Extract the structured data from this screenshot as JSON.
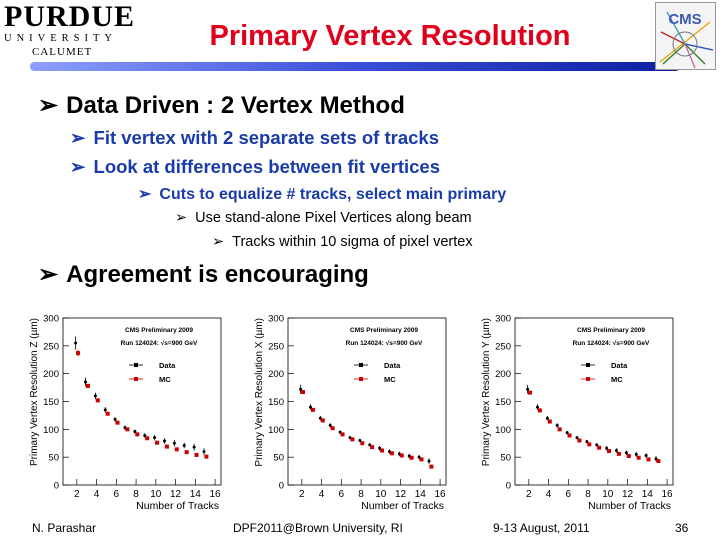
{
  "header": {
    "title": "Primary Vertex Resolution",
    "logo_left": {
      "word": "PURDUE",
      "university": "UNIVERSITY",
      "subtitle": "CALUMET"
    },
    "logo_right": {
      "text": "CMS"
    }
  },
  "bullets": {
    "method": "Data Driven : 2  Vertex Method",
    "fit": "Fit vertex with 2 separate sets of tracks",
    "look": "Look at differences between fit vertices",
    "cuts": "Cuts to equalize # tracks, select main primary",
    "standalone": "Use stand-alone Pixel Vertices along beam",
    "sigma": "Tracks within 10 sigma of pixel vertex",
    "agreement": "Agreement is encouraging"
  },
  "colors": {
    "title": "#e0001b",
    "blue_text": "#1a3baa",
    "data_marker": "#000000",
    "mc_marker": "#cc0000"
  },
  "chart_data": [
    {
      "type": "scatter",
      "ylabel": "Primary Vertex Resolution Z (µm)",
      "xlabel": "Number of Tracks",
      "xticks": [
        2,
        4,
        6,
        8,
        10,
        12,
        14,
        16
      ],
      "yticks": [
        0,
        50,
        100,
        150,
        200,
        250,
        300
      ],
      "xlim": [
        0.6,
        16.6
      ],
      "ylim": [
        0,
        300
      ],
      "annotation": [
        "CMS Preliminary 2009",
        "Run 124024: √s=900 GeV"
      ],
      "legend": [
        "Data",
        "MC"
      ],
      "series": [
        {
          "name": "Data",
          "x": [
            2,
            3,
            4,
            5,
            6,
            7,
            8,
            9,
            10,
            11,
            12,
            13,
            14,
            15
          ],
          "y": [
            255,
            185,
            160,
            135,
            118,
            103,
            96,
            89,
            85,
            79,
            75,
            71,
            68,
            60
          ],
          "err": [
            12,
            8,
            6,
            5,
            4,
            4,
            4,
            4,
            5,
            5,
            6,
            5,
            6,
            6
          ]
        },
        {
          "name": "MC",
          "x": [
            2,
            3,
            4,
            5,
            6,
            7,
            8,
            9,
            10,
            11,
            12,
            13,
            14,
            15
          ],
          "y": [
            237,
            178,
            152,
            128,
            112,
            100,
            91,
            84,
            76,
            69,
            64,
            59,
            54,
            51
          ],
          "err": [
            6,
            4,
            3,
            3,
            2,
            2,
            2,
            2,
            2,
            2,
            2,
            2,
            2,
            2
          ]
        }
      ]
    },
    {
      "type": "scatter",
      "ylabel": "Primary Vertex Resolution X (µm)",
      "xlabel": "Number of Tracks",
      "xticks": [
        2,
        4,
        6,
        8,
        10,
        12,
        14,
        16
      ],
      "yticks": [
        0,
        50,
        100,
        150,
        200,
        250,
        300
      ],
      "xlim": [
        0.6,
        16.6
      ],
      "ylim": [
        0,
        300
      ],
      "annotation": [
        "CMS Preliminary 2009",
        "Run 124024: √s=900 GeV"
      ],
      "legend": [
        "Data",
        "MC"
      ],
      "series": [
        {
          "name": "Data",
          "x": [
            2,
            3,
            4,
            5,
            6,
            7,
            8,
            9,
            10,
            11,
            12,
            13,
            14,
            15
          ],
          "y": [
            172,
            140,
            120,
            107,
            95,
            85,
            80,
            72,
            66,
            60,
            56,
            52,
            50,
            43
          ],
          "err": [
            8,
            5,
            4,
            4,
            3,
            3,
            3,
            3,
            4,
            4,
            4,
            4,
            4,
            5
          ]
        },
        {
          "name": "MC",
          "x": [
            2,
            3,
            4,
            5,
            6,
            7,
            8,
            9,
            10,
            11,
            12,
            13,
            14,
            15
          ],
          "y": [
            167,
            135,
            116,
            102,
            91,
            82,
            75,
            68,
            62,
            57,
            53,
            49,
            46,
            33
          ],
          "err": [
            3,
            3,
            2,
            2,
            2,
            2,
            2,
            2,
            2,
            2,
            2,
            2,
            2,
            2
          ]
        }
      ]
    },
    {
      "type": "scatter",
      "ylabel": "Primary Vertex Resolution Y (µm)",
      "xlabel": "Number of Tracks",
      "xticks": [
        2,
        4,
        6,
        8,
        10,
        12,
        14,
        16
      ],
      "yticks": [
        0,
        50,
        100,
        150,
        200,
        250,
        300
      ],
      "xlim": [
        0.6,
        16.6
      ],
      "ylim": [
        0,
        300
      ],
      "annotation": [
        "CMS Preliminary 2009",
        "Run 124024: √s=900 GeV"
      ],
      "legend": [
        "Data",
        "MC"
      ],
      "series": [
        {
          "name": "Data",
          "x": [
            2,
            3,
            4,
            5,
            6,
            7,
            8,
            9,
            10,
            11,
            12,
            13,
            14,
            15
          ],
          "y": [
            172,
            140,
            120,
            107,
            94,
            85,
            78,
            72,
            66,
            62,
            58,
            55,
            53,
            47
          ],
          "err": [
            8,
            5,
            4,
            4,
            3,
            3,
            3,
            3,
            4,
            4,
            4,
            4,
            4,
            5
          ]
        },
        {
          "name": "MC",
          "x": [
            2,
            3,
            4,
            5,
            6,
            7,
            8,
            9,
            10,
            11,
            12,
            13,
            14,
            15
          ],
          "y": [
            166,
            134,
            114,
            100,
            89,
            80,
            73,
            67,
            61,
            56,
            52,
            49,
            46,
            43
          ],
          "err": [
            3,
            3,
            2,
            2,
            2,
            2,
            2,
            2,
            2,
            2,
            2,
            2,
            2,
            2
          ]
        }
      ]
    }
  ],
  "footer": {
    "author": "N. Parashar",
    "conference": "DPF2011@Brown University, RI",
    "dates": "9-13 August, 2011",
    "page": "36"
  }
}
